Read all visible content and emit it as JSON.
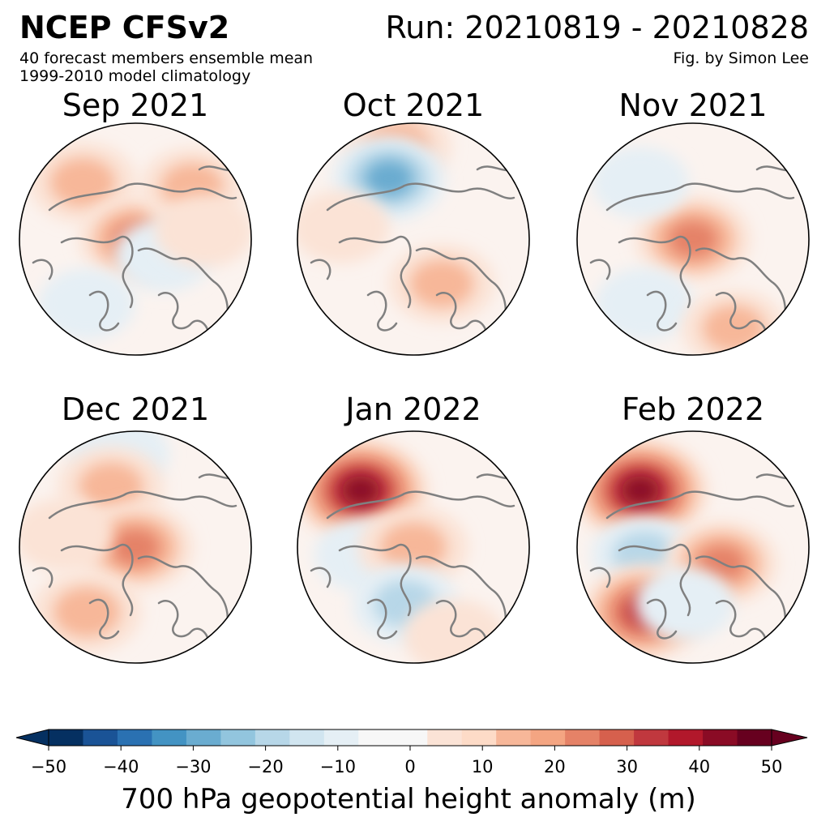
{
  "header": {
    "title": "NCEP CFSv2",
    "run": "Run: 20210819 - 20210828",
    "subtitle_line1": "40 forecast members ensemble mean",
    "subtitle_line2": "1999-2010 model climatology",
    "credit": "Fig. by Simon Lee"
  },
  "panels": [
    {
      "title": "Sep 2021",
      "anomalies": [
        {
          "where": "upper-left",
          "value": 20
        },
        {
          "where": "center",
          "value": 25
        },
        {
          "where": "top-right",
          "value": 15
        },
        {
          "where": "center-right",
          "value": -10
        },
        {
          "where": "lower-left",
          "value": -8
        },
        {
          "where": "right",
          "value": 10
        }
      ]
    },
    {
      "title": "Oct 2021",
      "anomalies": [
        {
          "where": "top-center",
          "value": 20
        },
        {
          "where": "upper-center",
          "value": -25
        },
        {
          "where": "lower-right",
          "value": 18
        },
        {
          "where": "left",
          "value": 10
        }
      ]
    },
    {
      "title": "Nov 2021",
      "anomalies": [
        {
          "where": "center",
          "value": 28
        },
        {
          "where": "upper-left",
          "value": -8
        },
        {
          "where": "lower-left",
          "value": -10
        },
        {
          "where": "bottom-right",
          "value": 15
        }
      ]
    },
    {
      "title": "Dec 2021",
      "anomalies": [
        {
          "where": "top-center",
          "value": -12
        },
        {
          "where": "upper-center",
          "value": 18
        },
        {
          "where": "center",
          "value": 28
        },
        {
          "where": "lower-left",
          "value": 22
        },
        {
          "where": "left",
          "value": 10
        }
      ]
    },
    {
      "title": "Jan 2022",
      "anomalies": [
        {
          "where": "upper-left",
          "value": 50
        },
        {
          "where": "center-left",
          "value": -12
        },
        {
          "where": "center",
          "value": 22
        },
        {
          "where": "lower-center",
          "value": -18
        },
        {
          "where": "bottom-right",
          "value": 12
        }
      ]
    },
    {
      "title": "Feb 2022",
      "anomalies": [
        {
          "where": "upper-left",
          "value": 50
        },
        {
          "where": "center-left",
          "value": -18
        },
        {
          "where": "lower-left",
          "value": 38
        },
        {
          "where": "center-right",
          "value": 25
        },
        {
          "where": "lower-center",
          "value": -10
        }
      ]
    }
  ],
  "colorbar": {
    "label": "700 hPa geopotential height anomaly (m)",
    "min": -50,
    "max": 50,
    "step": 5,
    "ticks": [
      "−50",
      "−40",
      "−30",
      "−20",
      "−10",
      "0",
      "10",
      "20",
      "30",
      "40",
      "50"
    ],
    "tick_values": [
      -50,
      -40,
      -30,
      -20,
      -10,
      0,
      10,
      20,
      30,
      40,
      50
    ],
    "colors": [
      "#053061",
      "#1a5396",
      "#2a71b2",
      "#4393c3",
      "#6aacd0",
      "#92c5de",
      "#b7d7e8",
      "#d1e5f0",
      "#e5eff5",
      "#f7f7f7",
      "#f7f7f7",
      "#fbe3d6",
      "#fddbc7",
      "#f7b799",
      "#f4a582",
      "#e58267",
      "#d6604d",
      "#c0383e",
      "#b2182b",
      "#8a0b25",
      "#67001f"
    ],
    "under_color": "#053061",
    "over_color": "#67001f"
  },
  "map_style": {
    "land_outline": "#808080",
    "ocean_background": "#f7f7f7",
    "border": "#000000"
  }
}
